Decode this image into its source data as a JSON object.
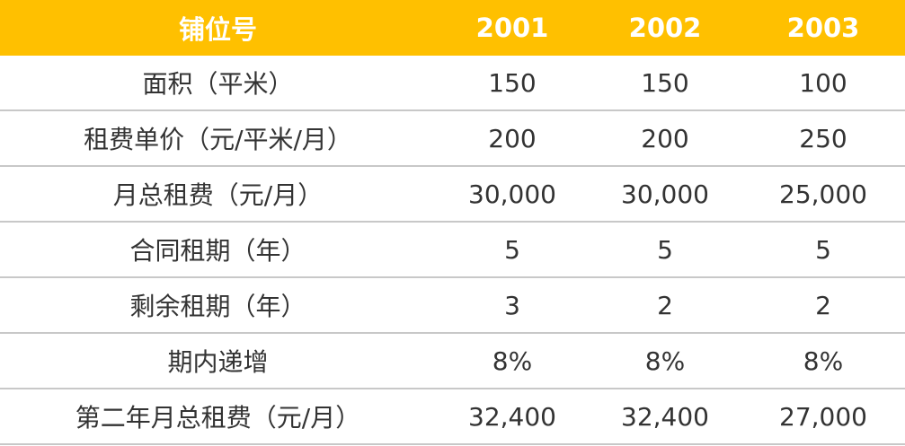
{
  "table": {
    "header": [
      "铺位号",
      "2001",
      "2002",
      "2003"
    ],
    "rows": [
      [
        "面积（平米）",
        "150",
        "150",
        "100"
      ],
      [
        "租费单价（元/平米/月）",
        "200",
        "200",
        "250"
      ],
      [
        "月总租费（元/月）",
        "30,000",
        "30,000",
        "25,000"
      ],
      [
        "合同租期（年）",
        "5",
        "5",
        "5"
      ],
      [
        "剩余租期（年）",
        "3",
        "2",
        "2"
      ],
      [
        "期内递增",
        "8%",
        "8%",
        "8%"
      ],
      [
        "第二年月总租费（元/月）",
        "32,400",
        "32,400",
        "27,000"
      ]
    ]
  }
}
